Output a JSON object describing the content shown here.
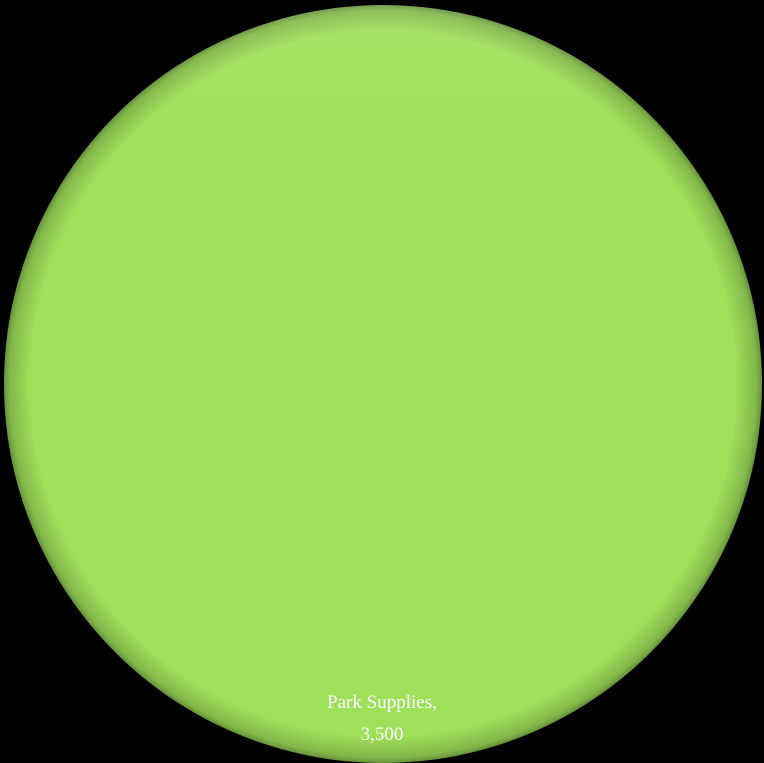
{
  "chart_data": {
    "type": "pie",
    "categories": [
      "Park Supplies"
    ],
    "values": [
      3500
    ],
    "data_labels": [
      {
        "line1": "Park Supplies,",
        "line2": "3,500"
      }
    ],
    "colors": {
      "background": "#000000",
      "slices": [
        "#9fe05a"
      ],
      "label_text": "#ffffff"
    },
    "title": "",
    "legend": "none"
  }
}
